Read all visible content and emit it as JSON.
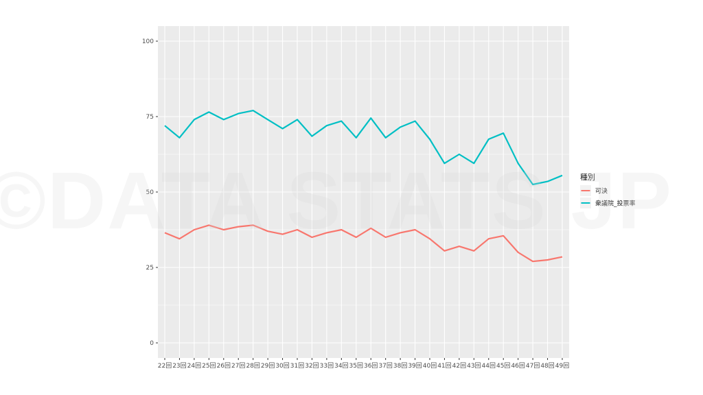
{
  "watermark": "©DATA STATS JP",
  "chart_data": {
    "type": "line",
    "title": "",
    "xlabel": "",
    "ylabel": "",
    "categories": [
      "22回",
      "23回",
      "24回",
      "25回",
      "26回",
      "27回",
      "28回",
      "29回",
      "30回",
      "31回",
      "32回",
      "33回",
      "34回",
      "35回",
      "36回",
      "37回",
      "38回",
      "39回",
      "40回",
      "41回",
      "42回",
      "43回",
      "44回",
      "45回",
      "46回",
      "47回",
      "48回",
      "49回"
    ],
    "ylim": [
      -5,
      105
    ],
    "yticks": [
      0,
      25,
      50,
      75,
      100
    ],
    "grid": true,
    "legend": {
      "title": "種別",
      "position": "right"
    },
    "series": [
      {
        "name": "可決",
        "color": "#F8766D",
        "values": [
          36.5,
          34.5,
          37.5,
          39,
          37.5,
          38.5,
          39,
          37,
          36,
          37.5,
          35,
          36.5,
          37.5,
          35,
          38,
          35,
          36.5,
          37.5,
          34.5,
          30.5,
          32,
          30.5,
          34.5,
          35.5,
          30,
          27,
          27.5,
          28.5
        ]
      },
      {
        "name": "衆議院_投票率",
        "color": "#00BFC4",
        "values": [
          72,
          68,
          74,
          76.5,
          74,
          76,
          77,
          74,
          71,
          74,
          68.5,
          72,
          73.5,
          68,
          74.5,
          68,
          71.5,
          73.5,
          67.5,
          59.5,
          62.5,
          59.5,
          67.5,
          69.5,
          59.5,
          52.5,
          53.5,
          55.5
        ]
      }
    ]
  }
}
